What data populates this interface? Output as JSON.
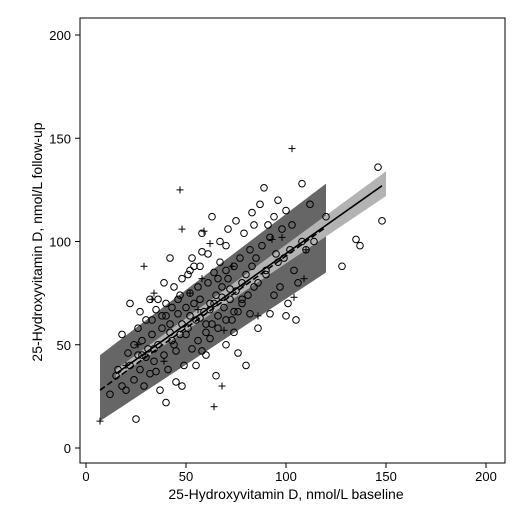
{
  "chart_data": {
    "type": "scatter",
    "xlabel": "25-Hydroxyvitamin D, nmol/L baseline",
    "ylabel": "25-Hydroxyvitamin D, nmol/L follow-up",
    "xlim": [
      0,
      200
    ],
    "ylim": [
      0,
      200
    ],
    "xticks": [
      0,
      50,
      100,
      150,
      200
    ],
    "yticks": [
      0,
      50,
      100,
      150,
      200
    ],
    "grid": false,
    "colors": {
      "ci_dark": "#666666",
      "ci_light": "#b3b3b3",
      "fit_line": "#000000",
      "markers": "#000000"
    },
    "bands": [
      {
        "name": "",
        "color": "#666666",
        "x": [
          7,
          120
        ],
        "lower": [
          13,
          85
        ],
        "upper": [
          45,
          128
        ]
      },
      {
        "name": "",
        "color": "#b3b3b3",
        "x": [
          15,
          150
        ],
        "lower": [
          34,
          122
        ],
        "upper": [
          38,
          134
        ]
      }
    ],
    "lines": [
      {
        "name": "",
        "style": "solid",
        "x": [
          15,
          148
        ],
        "y": [
          36,
          127
        ]
      },
      {
        "name": "",
        "style": "dashed",
        "x": [
          7,
          120
        ],
        "y": [
          28,
          107
        ]
      }
    ],
    "series": [
      {
        "marker": "circle",
        "points": [
          [
            12,
            26
          ],
          [
            15,
            35
          ],
          [
            18,
            30
          ],
          [
            20,
            28
          ],
          [
            22,
            40
          ],
          [
            24,
            33
          ],
          [
            25,
            14
          ],
          [
            26,
            45
          ],
          [
            27,
            38
          ],
          [
            28,
            52
          ],
          [
            29,
            30
          ],
          [
            30,
            62
          ],
          [
            31,
            48
          ],
          [
            32,
            36
          ],
          [
            33,
            55
          ],
          [
            34,
            42
          ],
          [
            35,
            67
          ],
          [
            36,
            50
          ],
          [
            37,
            28
          ],
          [
            38,
            58
          ],
          [
            39,
            45
          ],
          [
            40,
            70
          ],
          [
            41,
            38
          ],
          [
            42,
            60
          ],
          [
            43,
            52
          ],
          [
            44,
            78
          ],
          [
            45,
            47
          ],
          [
            46,
            65
          ],
          [
            47,
            55
          ],
          [
            48,
            82
          ],
          [
            49,
            40
          ],
          [
            50,
            68
          ],
          [
            51,
            58
          ],
          [
            52,
            75
          ],
          [
            53,
            48
          ],
          [
            54,
            88
          ],
          [
            55,
            62
          ],
          [
            56,
            52
          ],
          [
            57,
            72
          ],
          [
            58,
            95
          ],
          [
            59,
            66
          ],
          [
            60,
            56
          ],
          [
            61,
            80
          ],
          [
            62,
            70
          ],
          [
            63,
            60
          ],
          [
            64,
            85
          ],
          [
            65,
            74
          ],
          [
            66,
            64
          ],
          [
            67,
            90
          ],
          [
            68,
            78
          ],
          [
            69,
            68
          ],
          [
            70,
            98
          ],
          [
            71,
            82
          ],
          [
            72,
            72
          ],
          [
            73,
            62
          ],
          [
            74,
            88
          ],
          [
            75,
            76
          ],
          [
            76,
            66
          ],
          [
            77,
            92
          ],
          [
            78,
            80
          ],
          [
            79,
            104
          ],
          [
            80,
            84
          ],
          [
            81,
            74
          ],
          [
            82,
            96
          ],
          [
            83,
            88
          ],
          [
            84,
            108
          ],
          [
            85,
            92
          ],
          [
            86,
            80
          ],
          [
            87,
            118
          ],
          [
            88,
            98
          ],
          [
            89,
            126
          ],
          [
            90,
            86
          ],
          [
            92,
            102
          ],
          [
            94,
            112
          ],
          [
            95,
            94
          ],
          [
            96,
            120
          ],
          [
            97,
            78
          ],
          [
            98,
            106
          ],
          [
            100,
            115
          ],
          [
            101,
            70
          ],
          [
            103,
            108
          ],
          [
            105,
            62
          ],
          [
            108,
            128
          ],
          [
            110,
            96
          ],
          [
            112,
            118
          ],
          [
            114,
            100
          ],
          [
            120,
            112
          ],
          [
            128,
            88
          ],
          [
            135,
            101
          ],
          [
            137,
            98
          ],
          [
            146,
            136
          ],
          [
            148,
            110
          ],
          [
            100,
            64
          ],
          [
            80,
            40
          ],
          [
            60,
            45
          ],
          [
            45,
            32
          ],
          [
            52,
            86
          ],
          [
            63,
            112
          ],
          [
            36,
            72
          ],
          [
            42,
            92
          ],
          [
            58,
            104
          ],
          [
            74,
            56
          ],
          [
            86,
            58
          ],
          [
            92,
            65
          ],
          [
            22,
            70
          ],
          [
            18,
            55
          ],
          [
            40,
            22
          ],
          [
            48,
            30
          ],
          [
            65,
            35
          ],
          [
            70,
            50
          ],
          [
            76,
            46
          ],
          [
            55,
            40
          ],
          [
            33,
            62
          ],
          [
            28,
            45
          ],
          [
            50,
            55
          ],
          [
            57,
            63
          ],
          [
            62,
            67
          ],
          [
            68,
            73
          ],
          [
            72,
            77
          ],
          [
            78,
            70
          ],
          [
            82,
            65
          ],
          [
            44,
            50
          ],
          [
            38,
            64
          ],
          [
            34,
            48
          ],
          [
            66,
            82
          ],
          [
            70,
            86
          ],
          [
            54,
            70
          ],
          [
            46,
            72
          ],
          [
            42,
            56
          ],
          [
            60,
            60
          ],
          [
            64,
            70
          ],
          [
            56,
            78
          ],
          [
            52,
            64
          ],
          [
            48,
            60
          ],
          [
            40,
            64
          ],
          [
            26,
            58
          ],
          [
            24,
            50
          ],
          [
            30,
            44
          ],
          [
            35,
            37
          ],
          [
            58,
            47
          ],
          [
            62,
            53
          ],
          [
            66,
            58
          ],
          [
            70,
            62
          ],
          [
            74,
            66
          ],
          [
            78,
            72
          ],
          [
            84,
            78
          ],
          [
            90,
            84
          ],
          [
            96,
            90
          ],
          [
            102,
            96
          ],
          [
            108,
            100
          ],
          [
            16,
            38
          ],
          [
            21,
            46
          ],
          [
            27,
            66
          ],
          [
            32,
            72
          ],
          [
            39,
            80
          ],
          [
            43,
            68
          ],
          [
            47,
            74
          ],
          [
            51,
            84
          ],
          [
            53,
            92
          ],
          [
            57,
            88
          ],
          [
            61,
            94
          ],
          [
            67,
            100
          ],
          [
            71,
            106
          ],
          [
            75,
            110
          ],
          [
            83,
            114
          ],
          [
            91,
            108
          ],
          [
            99,
            92
          ],
          [
            104,
            86
          ],
          [
            106,
            80
          ],
          [
            94,
            74
          ]
        ]
      },
      {
        "marker": "plus",
        "points": [
          [
            7,
            13
          ],
          [
            47,
            125
          ],
          [
            103,
            145
          ],
          [
            64,
            20
          ],
          [
            68,
            30
          ],
          [
            48,
            106
          ],
          [
            29,
            88
          ],
          [
            34,
            75
          ],
          [
            62,
            99
          ],
          [
            59,
            105
          ],
          [
            52,
            75
          ],
          [
            104,
            73
          ],
          [
            109,
            82
          ],
          [
            93,
            101
          ],
          [
            98,
            102
          ],
          [
            58,
            82
          ],
          [
            26,
            50
          ],
          [
            39,
            42
          ],
          [
            73,
            88
          ],
          [
            86,
            64
          ],
          [
            33,
            72
          ],
          [
            56,
            67
          ],
          [
            69,
            57
          ],
          [
            20,
            40
          ],
          [
            110,
            96
          ]
        ]
      }
    ]
  }
}
